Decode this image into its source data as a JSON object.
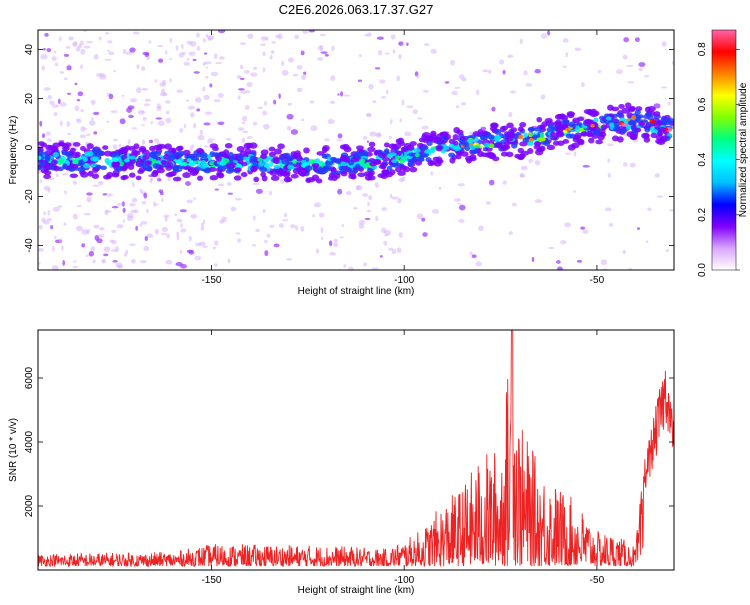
{
  "title": "C2E6.2026.063.17.37.G27",
  "chart_data": [
    {
      "type": "heatmap",
      "xlabel": "Height of straight line (km)",
      "ylabel": "Frequency (Hz)",
      "xlim": [
        -195,
        -30
      ],
      "ylim": [
        -50,
        48
      ],
      "x_ticks": [
        -150,
        -100,
        -50
      ],
      "y_ticks": [
        -40,
        -20,
        0,
        20,
        40
      ],
      "colorbar": {
        "label": "Normalized spectral amplitude",
        "range": [
          0,
          0.87
        ],
        "ticks": [
          "0.0",
          "0.2",
          "0.4",
          "0.6",
          "0.8"
        ],
        "colors": [
          "#ffffff",
          "#d9a6ff",
          "#8000ff",
          "#0000ff",
          "#00bfff",
          "#00ffff",
          "#00ff80",
          "#80ff00",
          "#ffff00",
          "#ff8000",
          "#ff0000",
          "#ff66aa"
        ]
      },
      "ridge": {
        "x": [
          -195,
          -180,
          -160,
          -140,
          -120,
          -110,
          -100,
          -90,
          -80,
          -70,
          -60,
          -50,
          -40,
          -30
        ],
        "y": [
          -5,
          -5,
          -6,
          -6,
          -7,
          -6,
          -4,
          0,
          2,
          3,
          6,
          9,
          11,
          7
        ]
      }
    },
    {
      "type": "line",
      "xlabel": "Height of straight line (km)",
      "ylabel": "SNR (10 * v/v)",
      "xlim": [
        -195,
        -30
      ],
      "ylim": [
        0,
        7500
      ],
      "x_ticks": [
        -150,
        -100,
        -50
      ],
      "y_ticks": [
        2000,
        4000,
        6000
      ],
      "series": [
        {
          "color": "#ee2222",
          "envelope_x": [
            -195,
            -160,
            -150,
            -120,
            -105,
            -100,
            -95,
            -90,
            -85,
            -80,
            -75,
            -72,
            -70,
            -65,
            -60,
            -55,
            -50,
            -45,
            -40,
            -38,
            -35,
            -32,
            -30
          ],
          "envelope_y": [
            400,
            450,
            700,
            650,
            550,
            800,
            1200,
            2000,
            2500,
            3500,
            3800,
            7500,
            4500,
            3200,
            2500,
            2000,
            1100,
            1000,
            600,
            3000,
            4500,
            6100,
            4200
          ]
        }
      ]
    }
  ]
}
